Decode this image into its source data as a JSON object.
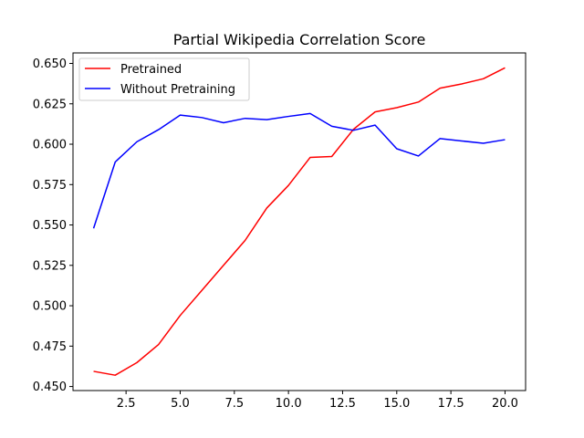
{
  "chart_data": {
    "type": "line",
    "title": "Partial Wikipedia Correlation Score",
    "xlabel": "",
    "ylabel": "",
    "xlim": [
      0.05,
      20.95
    ],
    "ylim": [
      0.4475,
      0.6565
    ],
    "xticks": [
      2.5,
      5.0,
      7.5,
      10.0,
      12.5,
      15.0,
      17.5,
      20.0
    ],
    "xtick_labels": [
      "2.5",
      "5.0",
      "7.5",
      "10.0",
      "12.5",
      "15.0",
      "17.5",
      "20.0"
    ],
    "yticks": [
      0.45,
      0.475,
      0.5,
      0.525,
      0.55,
      0.575,
      0.6,
      0.625,
      0.65
    ],
    "ytick_labels": [
      "0.450",
      "0.475",
      "0.500",
      "0.525",
      "0.550",
      "0.575",
      "0.600",
      "0.625",
      "0.650"
    ],
    "grid": false,
    "legend_position": "top-left",
    "x": [
      1,
      2,
      3,
      4,
      5,
      6,
      7,
      8,
      9,
      10,
      11,
      12,
      13,
      14,
      15,
      16,
      17,
      18,
      19,
      20
    ],
    "series": [
      {
        "name": "Pretrained",
        "color": "#ff0000",
        "values": [
          0.4594,
          0.457,
          0.4648,
          0.476,
          0.494,
          0.5095,
          0.525,
          0.5405,
          0.5605,
          0.5745,
          0.5918,
          0.5924,
          0.6092,
          0.62,
          0.6226,
          0.6261,
          0.6347,
          0.6373,
          0.6405,
          0.6473
        ]
      },
      {
        "name": "Without Pretraining",
        "color": "#0000ff",
        "values": [
          0.5479,
          0.589,
          0.6015,
          0.609,
          0.618,
          0.6165,
          0.6133,
          0.616,
          0.6152,
          0.6172,
          0.619,
          0.6111,
          0.6086,
          0.6118,
          0.5972,
          0.5927,
          0.6035,
          0.602,
          0.6006,
          0.6028
        ]
      }
    ]
  }
}
